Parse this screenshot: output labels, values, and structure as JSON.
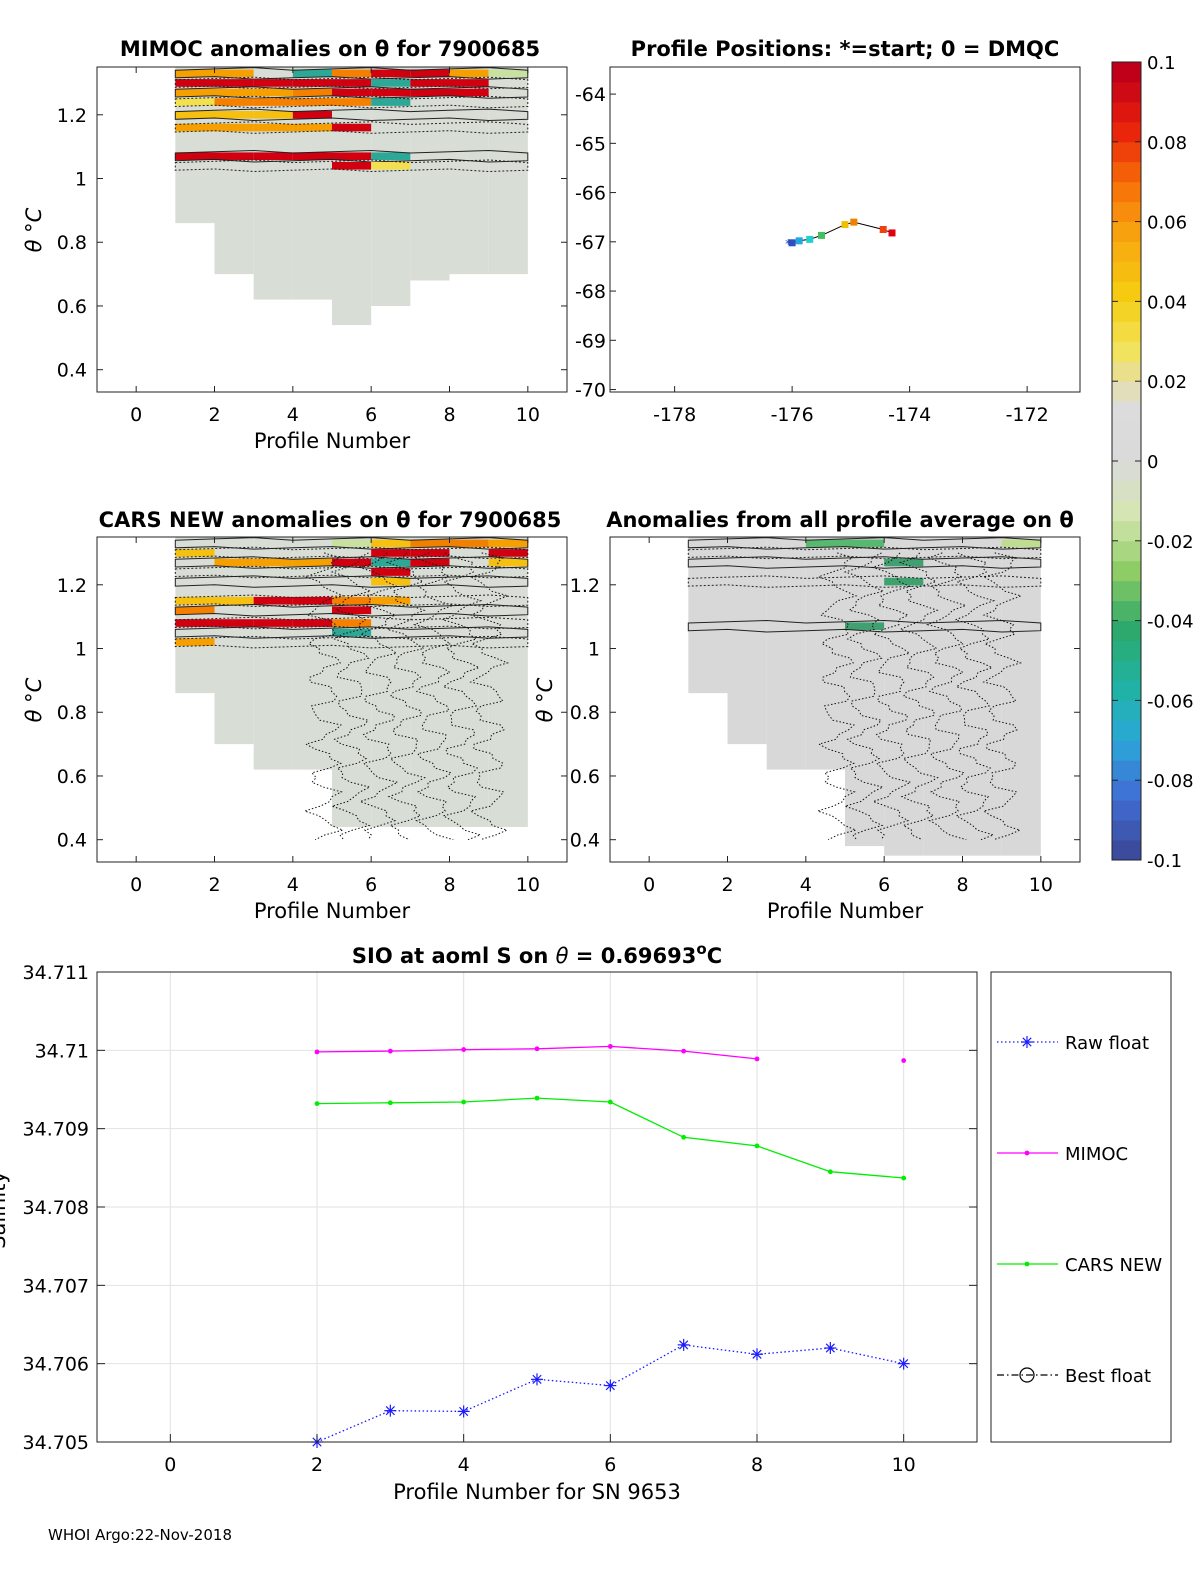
{
  "footer": "WHOI Argo:22-Nov-2018",
  "colorbar": {
    "ticks": [
      "0.1",
      "0.08",
      "0.06",
      "0.04",
      "0.02",
      "0",
      "-0.02",
      "-0.04",
      "-0.06",
      "-0.08",
      "-0.1"
    ],
    "stops": [
      "#3b4c9e",
      "#4070d6",
      "#2aa8d8",
      "#20b3a0",
      "#2ea86a",
      "#8ccc63",
      "#d6e6b0",
      "#dadada",
      "#dcdcdc",
      "#f2e35a",
      "#f5cc10",
      "#f8a810",
      "#f86e08",
      "#e8200c",
      "#c00018"
    ]
  },
  "chart_data": [
    {
      "id": "mimoc",
      "type": "heatmap",
      "title": "MIMOC anomalies on θ  for 7900685",
      "xlabel": "Profile Number",
      "ylabel": "θ °C",
      "xlim": [
        -1,
        11
      ],
      "ylim": [
        0.33,
        1.35
      ],
      "xticks": [
        "0",
        "2",
        "4",
        "6",
        "8",
        "10"
      ],
      "yticks": [
        "0.4",
        "0.6",
        "0.8",
        "1",
        "1.2"
      ],
      "coverage_min_theta": [
        0.86,
        0.7,
        0.62,
        0.62,
        0.54,
        0.6,
        0.68,
        0.7,
        0.7,
        0.7
      ],
      "fill_color": "#d8ddd6",
      "anomaly_bands": [
        {
          "y": 1.33,
          "cells": [
            "#f5a000",
            "#f5a000",
            "#dadada",
            "#2ea896",
            "#f58000",
            "#d00010",
            "#d00010",
            "#f5a000",
            "#c8e0a0"
          ]
        },
        {
          "y": 1.3,
          "cells": [
            "#d00010",
            "#d00010",
            "#d00010",
            "#d00010",
            "#d00010",
            "#2ea896",
            "#d00010",
            "#d00010",
            "#dadada"
          ]
        },
        {
          "y": 1.27,
          "cells": [
            "#f5a000",
            "#f5a000",
            "#f5a000",
            "#f58000",
            "#d00010",
            "#d00010",
            "#d00010",
            "#d00010",
            "#dadada"
          ]
        },
        {
          "y": 1.24,
          "cells": [
            "#f2e050",
            "#f58000",
            "#f58000",
            "#f58000",
            "#f58000",
            "#2ea896",
            "#dadada",
            "#dadada",
            "#dadada"
          ]
        },
        {
          "y": 1.2,
          "cells": [
            "#f5c010",
            "#f5c010",
            "#f5c010",
            "#d00010",
            "#dadada",
            "#dadada",
            "#dadada",
            "#dadada",
            "#dadada"
          ]
        },
        {
          "y": 1.16,
          "cells": [
            "#f5a000",
            "#f5a000",
            "#f5a000",
            "#f5a000",
            "#d00010",
            "#dadada",
            "#dadada",
            "#dadada",
            "#dadada"
          ]
        },
        {
          "y": 1.07,
          "cells": [
            "#d00010",
            "#d00010",
            "#d00010",
            "#d00010",
            "#d00010",
            "#2ea896",
            "#dadada",
            "#dadada",
            "#dadada"
          ]
        },
        {
          "y": 1.04,
          "cells": [
            "#dadada",
            "#dadada",
            "#dadada",
            "#dadada",
            "#d00010",
            "#f2e050",
            "#dadada",
            "#dadada",
            "#dadada"
          ]
        }
      ]
    },
    {
      "id": "positions",
      "type": "scatter",
      "title": "Profile Positions: *=start; 0 = DMQC",
      "xlim": [
        -179.1,
        -171.1
      ],
      "ylim": [
        -70.05,
        -63.45
      ],
      "xticks": [
        "-178",
        "-176",
        "-174",
        "-172"
      ],
      "yticks": [
        "-64",
        "-65",
        "-66",
        "-67",
        "-68",
        "-69",
        "-70"
      ],
      "lon": [
        -176.0,
        -175.88,
        -175.7,
        -175.5,
        -175.1,
        -174.95,
        -174.45,
        -174.3
      ],
      "lat": [
        -67.02,
        -66.98,
        -66.95,
        -66.87,
        -66.65,
        -66.6,
        -66.75,
        -66.82
      ],
      "colors": [
        "#3050c0",
        "#20a8e0",
        "#20d0d0",
        "#40c060",
        "#f0c000",
        "#f08000",
        "#f04010",
        "#e00010"
      ]
    },
    {
      "id": "cars",
      "type": "heatmap",
      "title": "CARS NEW anomalies on θ for 7900685",
      "xlabel": "Profile Number",
      "ylabel": "θ °C",
      "xlim": [
        -1,
        11
      ],
      "ylim": [
        0.33,
        1.35
      ],
      "xticks": [
        "0",
        "2",
        "4",
        "6",
        "8",
        "10"
      ],
      "yticks": [
        "0.4",
        "0.6",
        "0.8",
        "1",
        "1.2"
      ],
      "coverage_min_theta": [
        0.86,
        0.7,
        0.62,
        0.62,
        0.44,
        0.44,
        0.44,
        0.44,
        0.44,
        0.44
      ],
      "fill_color": "#d8ddd6",
      "anomaly_bands": [
        {
          "y": 1.33,
          "cells": [
            "#dadada",
            "#dadada",
            "#dadada",
            "#dadada",
            "#c8e0a0",
            "#f5c010",
            "#f08000",
            "#f08000",
            "#f5a000"
          ]
        },
        {
          "y": 1.3,
          "cells": [
            "#f5c010",
            "#dadada",
            "#dadada",
            "#dadada",
            "#dadada",
            "#d00010",
            "#d00010",
            "#dadada",
            "#d00010"
          ]
        },
        {
          "y": 1.27,
          "cells": [
            "#dadada",
            "#f5a000",
            "#f5a000",
            "#f5a000",
            "#d00010",
            "#2ea896",
            "#d00010",
            "#dadada",
            "#f5c010"
          ]
        },
        {
          "y": 1.24,
          "cells": [
            "#dadada",
            "#dadada",
            "#dadada",
            "#dadada",
            "#dadada",
            "#d00010",
            "#dadada",
            "#dadada",
            "#dadada"
          ]
        },
        {
          "y": 1.21,
          "cells": [
            "#dadada",
            "#dadada",
            "#dadada",
            "#dadada",
            "#dadada",
            "#f5c010",
            "#dadada",
            "#dadada",
            "#dadada"
          ]
        },
        {
          "y": 1.15,
          "cells": [
            "#f5c010",
            "#f5c010",
            "#d00010",
            "#d00010",
            "#f58000",
            "#f5a000",
            "#dadada",
            "#dadada",
            "#dadada"
          ]
        },
        {
          "y": 1.12,
          "cells": [
            "#f58000",
            "#dadada",
            "#dadada",
            "#dadada",
            "#d00010",
            "#dadada",
            "#dadada",
            "#dadada",
            "#dadada"
          ]
        },
        {
          "y": 1.08,
          "cells": [
            "#d00010",
            "#d00010",
            "#d00010",
            "#d00010",
            "#f58000",
            "#dadada",
            "#dadada",
            "#dadada",
            "#dadada"
          ]
        },
        {
          "y": 1.05,
          "cells": [
            "#dadada",
            "#dadada",
            "#dadada",
            "#dadada",
            "#2ea896",
            "#dadada",
            "#dadada",
            "#dadada",
            "#dadada"
          ]
        },
        {
          "y": 1.02,
          "cells": [
            "#f5a000",
            "#dadada",
            "#dadada",
            "#dadada",
            "#dadada",
            "#dadada",
            "#dadada",
            "#dadada",
            "#dadada"
          ]
        }
      ]
    },
    {
      "id": "allavg",
      "type": "heatmap",
      "title": "Anomalies from all profile average on θ",
      "xlabel": "Profile Number",
      "ylabel": "θ °C",
      "xlim": [
        -1,
        11
      ],
      "ylim": [
        0.33,
        1.35
      ],
      "xticks": [
        "0",
        "2",
        "4",
        "6",
        "8",
        "10"
      ],
      "yticks": [
        "0.4",
        "0.6",
        "0.8",
        "1",
        "1.2"
      ],
      "coverage_min_theta": [
        0.86,
        0.7,
        0.62,
        0.62,
        0.38,
        0.35,
        0.35,
        0.35,
        0.35,
        0.35
      ],
      "fill_color": "#d8d8d8",
      "anomaly_bands": [
        {
          "y": 1.33,
          "cells": [
            "#d8d8d8",
            "#d8d8d8",
            "#d8d8d8",
            "#58b870",
            "#58b870",
            "#d8d8d8",
            "#d8d8d8",
            "#d8d8d8",
            "#c0dc90"
          ]
        },
        {
          "y": 1.3,
          "cells": [
            "#d8d8d8",
            "#d8d8d8",
            "#d8d8d8",
            "#d8d8d8",
            "#d8d8d8",
            "#d8d8d8",
            "#d8d8d8",
            "#d8d8d8",
            "#d8d8d8"
          ]
        },
        {
          "y": 1.27,
          "cells": [
            "#d8d8d8",
            "#d8d8d8",
            "#d8d8d8",
            "#d8d8d8",
            "#d8d8d8",
            "#40a070",
            "#d8d8d8",
            "#d8d8d8",
            "#d8d8d8"
          ]
        },
        {
          "y": 1.21,
          "cells": [
            "#d8d8d8",
            "#d8d8d8",
            "#d8d8d8",
            "#d8d8d8",
            "#d8d8d8",
            "#40a070",
            "#d8d8d8",
            "#d8d8d8",
            "#d8d8d8"
          ]
        },
        {
          "y": 1.07,
          "cells": [
            "#d8d8d8",
            "#d8d8d8",
            "#d8d8d8",
            "#d8d8d8",
            "#40a070",
            "#d8d8d8",
            "#d8d8d8",
            "#d8d8d8",
            "#d8d8d8"
          ]
        }
      ]
    },
    {
      "id": "salinity",
      "type": "line",
      "title": "SIO at aoml S on θ = 0.69693°C",
      "title_parts": {
        "pre": "SIO at aoml S on ",
        "theta": "θ",
        "mid": " = 0.69693",
        "sup": "o",
        "post": "C"
      },
      "xlabel": "Profile Number for SN 9653",
      "ylabel": "Salinity",
      "xlim": [
        -1,
        11
      ],
      "ylim": [
        34.705,
        34.711
      ],
      "xticks": [
        "0",
        "2",
        "4",
        "6",
        "8",
        "10"
      ],
      "yticks": [
        "34.705",
        "34.706",
        "34.707",
        "34.708",
        "34.709",
        "34.71",
        "34.711"
      ],
      "series": [
        {
          "name": "Raw float",
          "color": "#1a1aff",
          "style": "dotted-star",
          "x": [
            2,
            3,
            4,
            5,
            6,
            7,
            8,
            9,
            10
          ],
          "y": [
            34.705,
            34.7054,
            34.70539,
            34.7058,
            34.70572,
            34.70624,
            34.70612,
            34.7062,
            34.706
          ]
        },
        {
          "name": "MIMOC",
          "color": "#ff00ff",
          "style": "solid-dot",
          "x": [
            2,
            3,
            4,
            5,
            6,
            7,
            8,
            10
          ],
          "y": [
            34.70998,
            34.70999,
            34.71001,
            34.71002,
            34.71005,
            34.70999,
            34.70989,
            34.70987
          ],
          "gap_before_index": 7
        },
        {
          "name": "CARS NEW",
          "color": "#00ee00",
          "style": "solid-dot",
          "x": [
            2,
            3,
            4,
            5,
            6,
            7,
            8,
            9,
            10
          ],
          "y": [
            34.70932,
            34.70933,
            34.70934,
            34.70939,
            34.70934,
            34.70889,
            34.70878,
            34.70845,
            34.70837
          ]
        },
        {
          "name": "Best float",
          "color": "#000000",
          "style": "dashdot-circle",
          "x": [],
          "y": []
        }
      ]
    }
  ]
}
